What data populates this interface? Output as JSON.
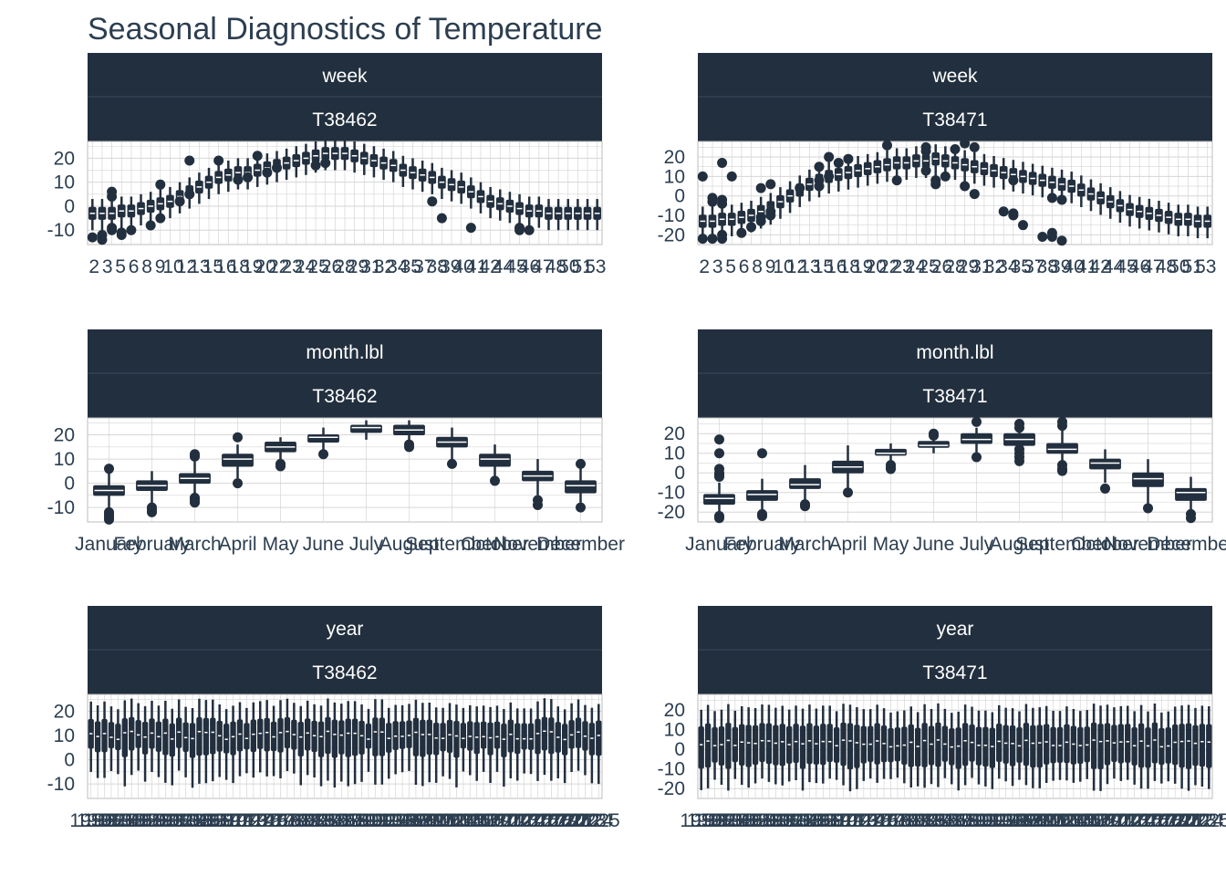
{
  "title": "Seasonal Diagnostics of Temperature",
  "colors": {
    "strip": "#222f3e",
    "strip_divider": "#3a4a5c",
    "box": "#222f3e",
    "median": "#ffffff",
    "grid": "#d6d6d6",
    "panel_border": "#bcbcbc"
  },
  "chart_data": [
    {
      "type": "box",
      "feature": "week",
      "id": "T38462",
      "strips": [
        "week",
        "T38462"
      ],
      "ylim": [
        -16,
        27
      ],
      "yticks": [
        -10,
        0,
        10,
        20
      ],
      "x_tick_labels": [
        "2",
        "3",
        "5",
        "6",
        "8",
        "9",
        "10",
        "12",
        "13",
        "15",
        "16",
        "18",
        "19",
        "20",
        "22",
        "23",
        "24",
        "25",
        "26",
        "28",
        "29",
        "31",
        "32",
        "34",
        "35",
        "37",
        "38",
        "39",
        "40",
        "41",
        "42",
        "44",
        "45",
        "46",
        "47",
        "48",
        "50",
        "51",
        "53"
      ],
      "categories": [
        "1",
        "2",
        "3",
        "4",
        "5",
        "6",
        "7",
        "8",
        "9",
        "10",
        "11",
        "12",
        "13",
        "14",
        "15",
        "16",
        "17",
        "18",
        "19",
        "20",
        "21",
        "22",
        "23",
        "24",
        "25",
        "26",
        "27",
        "28",
        "29",
        "30",
        "31",
        "32",
        "33",
        "34",
        "35",
        "36",
        "37",
        "38",
        "39",
        "40",
        "41",
        "42",
        "43",
        "44",
        "45",
        "46",
        "47",
        "48",
        "49",
        "50",
        "51",
        "52",
        "53"
      ],
      "median": [
        -3,
        -3,
        -3,
        -2,
        -2,
        -1,
        0,
        1,
        2,
        4,
        6,
        8,
        10,
        12,
        13,
        14,
        14,
        15,
        16,
        17,
        18,
        19,
        20,
        21,
        22,
        22,
        22,
        21,
        20,
        19,
        18,
        17,
        15,
        14,
        13,
        12,
        10,
        9,
        8,
        6,
        4,
        2,
        1,
        0,
        -1,
        -2,
        -2,
        -3,
        -3,
        -3,
        -3,
        -3,
        -3
      ],
      "outliers": [
        {
          "x": 1,
          "y": -13
        },
        {
          "x": 2,
          "y": -14
        },
        {
          "x": 2,
          "y": -12
        },
        {
          "x": 3,
          "y": 6
        },
        {
          "x": 3,
          "y": 4
        },
        {
          "x": 3,
          "y": -9
        },
        {
          "x": 3,
          "y": -10
        },
        {
          "x": 4,
          "y": -11
        },
        {
          "x": 4,
          "y": -12
        },
        {
          "x": 5,
          "y": -10
        },
        {
          "x": 7,
          "y": -8
        },
        {
          "x": 8,
          "y": 9
        },
        {
          "x": 8,
          "y": -5
        },
        {
          "x": 10,
          "y": 2
        },
        {
          "x": 11,
          "y": 19
        },
        {
          "x": 11,
          "y": 5
        },
        {
          "x": 14,
          "y": 19
        },
        {
          "x": 16,
          "y": 11
        },
        {
          "x": 17,
          "y": 12
        },
        {
          "x": 18,
          "y": 21
        },
        {
          "x": 19,
          "y": 14
        },
        {
          "x": 20,
          "y": 16
        },
        {
          "x": 24,
          "y": 17
        },
        {
          "x": 25,
          "y": 18
        },
        {
          "x": 36,
          "y": 2
        },
        {
          "x": 37,
          "y": -5
        },
        {
          "x": 40,
          "y": -9
        },
        {
          "x": 45,
          "y": -9
        },
        {
          "x": 45,
          "y": -10
        },
        {
          "x": 46,
          "y": -10
        }
      ]
    },
    {
      "type": "box",
      "feature": "week",
      "id": "T38471",
      "strips": [
        "week",
        "T38471"
      ],
      "ylim": [
        -25,
        28
      ],
      "yticks": [
        -20,
        -10,
        0,
        10,
        20
      ],
      "x_tick_labels": [
        "2",
        "3",
        "5",
        "6",
        "8",
        "9",
        "10",
        "12",
        "13",
        "15",
        "16",
        "18",
        "19",
        "20",
        "22",
        "23",
        "24",
        "25",
        "26",
        "28",
        "29",
        "31",
        "32",
        "34",
        "35",
        "37",
        "38",
        "39",
        "40",
        "41",
        "42",
        "44",
        "45",
        "46",
        "47",
        "48",
        "50",
        "51",
        "53"
      ],
      "categories": [
        "1",
        "2",
        "3",
        "4",
        "5",
        "6",
        "7",
        "8",
        "9",
        "10",
        "11",
        "12",
        "13",
        "14",
        "15",
        "16",
        "17",
        "18",
        "19",
        "20",
        "21",
        "22",
        "23",
        "24",
        "25",
        "26",
        "27",
        "28",
        "29",
        "30",
        "31",
        "32",
        "33",
        "34",
        "35",
        "36",
        "37",
        "38",
        "39",
        "40",
        "41",
        "42",
        "43",
        "44",
        "45",
        "46",
        "47",
        "48",
        "49",
        "50",
        "51",
        "52",
        "53"
      ],
      "median": [
        -13,
        -13,
        -12,
        -12,
        -11,
        -10,
        -8,
        -6,
        -3,
        0,
        3,
        6,
        8,
        10,
        11,
        12,
        13,
        14,
        15,
        16,
        17,
        17,
        18,
        18,
        19,
        18,
        17,
        16,
        15,
        14,
        13,
        12,
        11,
        10,
        9,
        8,
        7,
        6,
        5,
        3,
        1,
        -1,
        -3,
        -5,
        -7,
        -8,
        -9,
        -10,
        -11,
        -12,
        -12,
        -13,
        -13
      ],
      "outliers": [
        {
          "x": 1,
          "y": 10
        },
        {
          "x": 1,
          "y": -22
        },
        {
          "x": 2,
          "y": -1
        },
        {
          "x": 2,
          "y": -3
        },
        {
          "x": 2,
          "y": -22
        },
        {
          "x": 3,
          "y": 17
        },
        {
          "x": 3,
          "y": -2
        },
        {
          "x": 3,
          "y": -4
        },
        {
          "x": 3,
          "y": -20
        },
        {
          "x": 3,
          "y": -22
        },
        {
          "x": 4,
          "y": 10
        },
        {
          "x": 5,
          "y": -19
        },
        {
          "x": 6,
          "y": -16
        },
        {
          "x": 7,
          "y": 4
        },
        {
          "x": 7,
          "y": -11
        },
        {
          "x": 7,
          "y": -13
        },
        {
          "x": 8,
          "y": 6
        },
        {
          "x": 8,
          "y": -8
        },
        {
          "x": 8,
          "y": -10
        },
        {
          "x": 11,
          "y": 4
        },
        {
          "x": 13,
          "y": 15
        },
        {
          "x": 13,
          "y": 8
        },
        {
          "x": 13,
          "y": 5
        },
        {
          "x": 14,
          "y": 20
        },
        {
          "x": 14,
          "y": 10
        },
        {
          "x": 15,
          "y": 17
        },
        {
          "x": 16,
          "y": 19
        },
        {
          "x": 20,
          "y": 26
        },
        {
          "x": 21,
          "y": 8
        },
        {
          "x": 24,
          "y": 25
        },
        {
          "x": 24,
          "y": 23
        },
        {
          "x": 24,
          "y": 13
        },
        {
          "x": 25,
          "y": 8
        },
        {
          "x": 25,
          "y": 6
        },
        {
          "x": 26,
          "y": 10
        },
        {
          "x": 27,
          "y": 24
        },
        {
          "x": 28,
          "y": 27
        },
        {
          "x": 28,
          "y": 5
        },
        {
          "x": 29,
          "y": 25
        },
        {
          "x": 29,
          "y": 1
        },
        {
          "x": 32,
          "y": -8
        },
        {
          "x": 33,
          "y": 8
        },
        {
          "x": 33,
          "y": -9
        },
        {
          "x": 33,
          "y": -10
        },
        {
          "x": 34,
          "y": -15
        },
        {
          "x": 36,
          "y": -21
        },
        {
          "x": 37,
          "y": -1
        },
        {
          "x": 37,
          "y": -19
        },
        {
          "x": 37,
          "y": -21
        },
        {
          "x": 38,
          "y": -2
        },
        {
          "x": 38,
          "y": -23
        }
      ]
    },
    {
      "type": "box",
      "feature": "month.lbl",
      "id": "T38462",
      "strips": [
        "month.lbl",
        "T38462"
      ],
      "ylim": [
        -16,
        27
      ],
      "yticks": [
        -10,
        0,
        10,
        20
      ],
      "categories": [
        "January",
        "February",
        "March",
        "April",
        "May",
        "June",
        "July",
        "August",
        "September",
        "October",
        "November",
        "December"
      ],
      "q1": [
        -5,
        -3,
        0,
        7,
        13,
        17,
        21,
        20,
        15,
        7,
        1,
        -4
      ],
      "median": [
        -3,
        -1,
        2,
        10,
        15,
        19,
        23,
        22,
        17,
        10,
        3,
        -1
      ],
      "q3": [
        -1,
        1,
        4,
        12,
        17,
        20,
        24,
        24,
        19,
        12,
        5,
        1
      ],
      "whisker_low": [
        -10,
        -9,
        -5,
        2,
        10,
        14,
        18,
        17,
        10,
        3,
        -5,
        -8
      ],
      "whisker_high": [
        4,
        5,
        9,
        16,
        19,
        23,
        26,
        26,
        23,
        16,
        10,
        7
      ],
      "outliers": [
        {
          "x": 1,
          "y": 6
        },
        {
          "x": 1,
          "y": -12
        },
        {
          "x": 1,
          "y": -13
        },
        {
          "x": 1,
          "y": -14
        },
        {
          "x": 1,
          "y": -15
        },
        {
          "x": 2,
          "y": -10
        },
        {
          "x": 2,
          "y": -11
        },
        {
          "x": 2,
          "y": -12
        },
        {
          "x": 3,
          "y": 12
        },
        {
          "x": 3,
          "y": 11
        },
        {
          "x": 3,
          "y": -6
        },
        {
          "x": 3,
          "y": -7
        },
        {
          "x": 3,
          "y": -8
        },
        {
          "x": 4,
          "y": 19
        },
        {
          "x": 4,
          "y": 0
        },
        {
          "x": 5,
          "y": 8
        },
        {
          "x": 5,
          "y": 7
        },
        {
          "x": 6,
          "y": 12
        },
        {
          "x": 8,
          "y": 16
        },
        {
          "x": 8,
          "y": 15
        },
        {
          "x": 9,
          "y": 8
        },
        {
          "x": 10,
          "y": 1
        },
        {
          "x": 11,
          "y": -7
        },
        {
          "x": 11,
          "y": -9
        },
        {
          "x": 12,
          "y": 8
        },
        {
          "x": 12,
          "y": -10
        }
      ]
    },
    {
      "type": "box",
      "feature": "month.lbl",
      "id": "T38471",
      "strips": [
        "month.lbl",
        "T38471"
      ],
      "ylim": [
        -25,
        28
      ],
      "yticks": [
        -20,
        -10,
        0,
        10,
        20
      ],
      "categories": [
        "January",
        "February",
        "March",
        "April",
        "May",
        "June",
        "July",
        "August",
        "September",
        "October",
        "November",
        "December"
      ],
      "q1": [
        -16,
        -14,
        -8,
        0,
        9,
        13,
        15,
        14,
        10,
        2,
        -7,
        -14
      ],
      "median": [
        -13,
        -11,
        -6,
        3,
        10,
        14,
        17,
        17,
        12,
        5,
        -3,
        -10
      ],
      "q3": [
        -11,
        -9,
        -3,
        6,
        12,
        16,
        20,
        20,
        15,
        7,
        0,
        -8
      ],
      "whisker_low": [
        -21,
        -19,
        -15,
        -8,
        5,
        10,
        10,
        9,
        3,
        -5,
        -16,
        -21
      ],
      "whisker_high": [
        -5,
        -3,
        4,
        14,
        15,
        19,
        23,
        23,
        23,
        12,
        7,
        -2
      ],
      "outliers": [
        {
          "x": 1,
          "y": 17
        },
        {
          "x": 1,
          "y": 10
        },
        {
          "x": 1,
          "y": 2
        },
        {
          "x": 1,
          "y": 0
        },
        {
          "x": 1,
          "y": -1
        },
        {
          "x": 1,
          "y": -2
        },
        {
          "x": 1,
          "y": -22
        },
        {
          "x": 1,
          "y": -23
        },
        {
          "x": 2,
          "y": 10
        },
        {
          "x": 2,
          "y": -21
        },
        {
          "x": 2,
          "y": -22
        },
        {
          "x": 3,
          "y": -16
        },
        {
          "x": 3,
          "y": -17
        },
        {
          "x": 4,
          "y": -10
        },
        {
          "x": 5,
          "y": 4
        },
        {
          "x": 5,
          "y": 3
        },
        {
          "x": 5,
          "y": 2
        },
        {
          "x": 6,
          "y": 20
        },
        {
          "x": 6,
          "y": 19
        },
        {
          "x": 7,
          "y": 26
        },
        {
          "x": 7,
          "y": 8
        },
        {
          "x": 8,
          "y": 25
        },
        {
          "x": 8,
          "y": 23
        },
        {
          "x": 8,
          "y": 12
        },
        {
          "x": 8,
          "y": 10
        },
        {
          "x": 8,
          "y": 8
        },
        {
          "x": 8,
          "y": 6
        },
        {
          "x": 9,
          "y": 26
        },
        {
          "x": 9,
          "y": 24
        },
        {
          "x": 9,
          "y": 4
        },
        {
          "x": 9,
          "y": 2
        },
        {
          "x": 9,
          "y": 1
        },
        {
          "x": 10,
          "y": -8
        },
        {
          "x": 11,
          "y": -18
        },
        {
          "x": 12,
          "y": -21
        },
        {
          "x": 12,
          "y": -23
        }
      ]
    },
    {
      "type": "box",
      "feature": "year",
      "id": "T38462",
      "strips": [
        "year",
        "T38462"
      ],
      "ylim": [
        -16,
        27
      ],
      "yticks": [
        -10,
        0,
        10,
        20
      ],
      "categories_range": [
        1950,
        2025
      ],
      "median_typical": 10,
      "q1_typical": 3,
      "q3_typical": 16,
      "whisker_low_typical": -8,
      "whisker_high_typical": 23
    },
    {
      "type": "box",
      "feature": "year",
      "id": "T38471",
      "strips": [
        "year",
        "T38471"
      ],
      "ylim": [
        -25,
        28
      ],
      "yticks": [
        -20,
        -10,
        0,
        10,
        20
      ],
      "categories_range": [
        1950,
        2025
      ],
      "median_typical": 3,
      "q1_typical": -8,
      "q3_typical": 12,
      "whisker_low_typical": -18,
      "whisker_high_typical": 21
    }
  ]
}
